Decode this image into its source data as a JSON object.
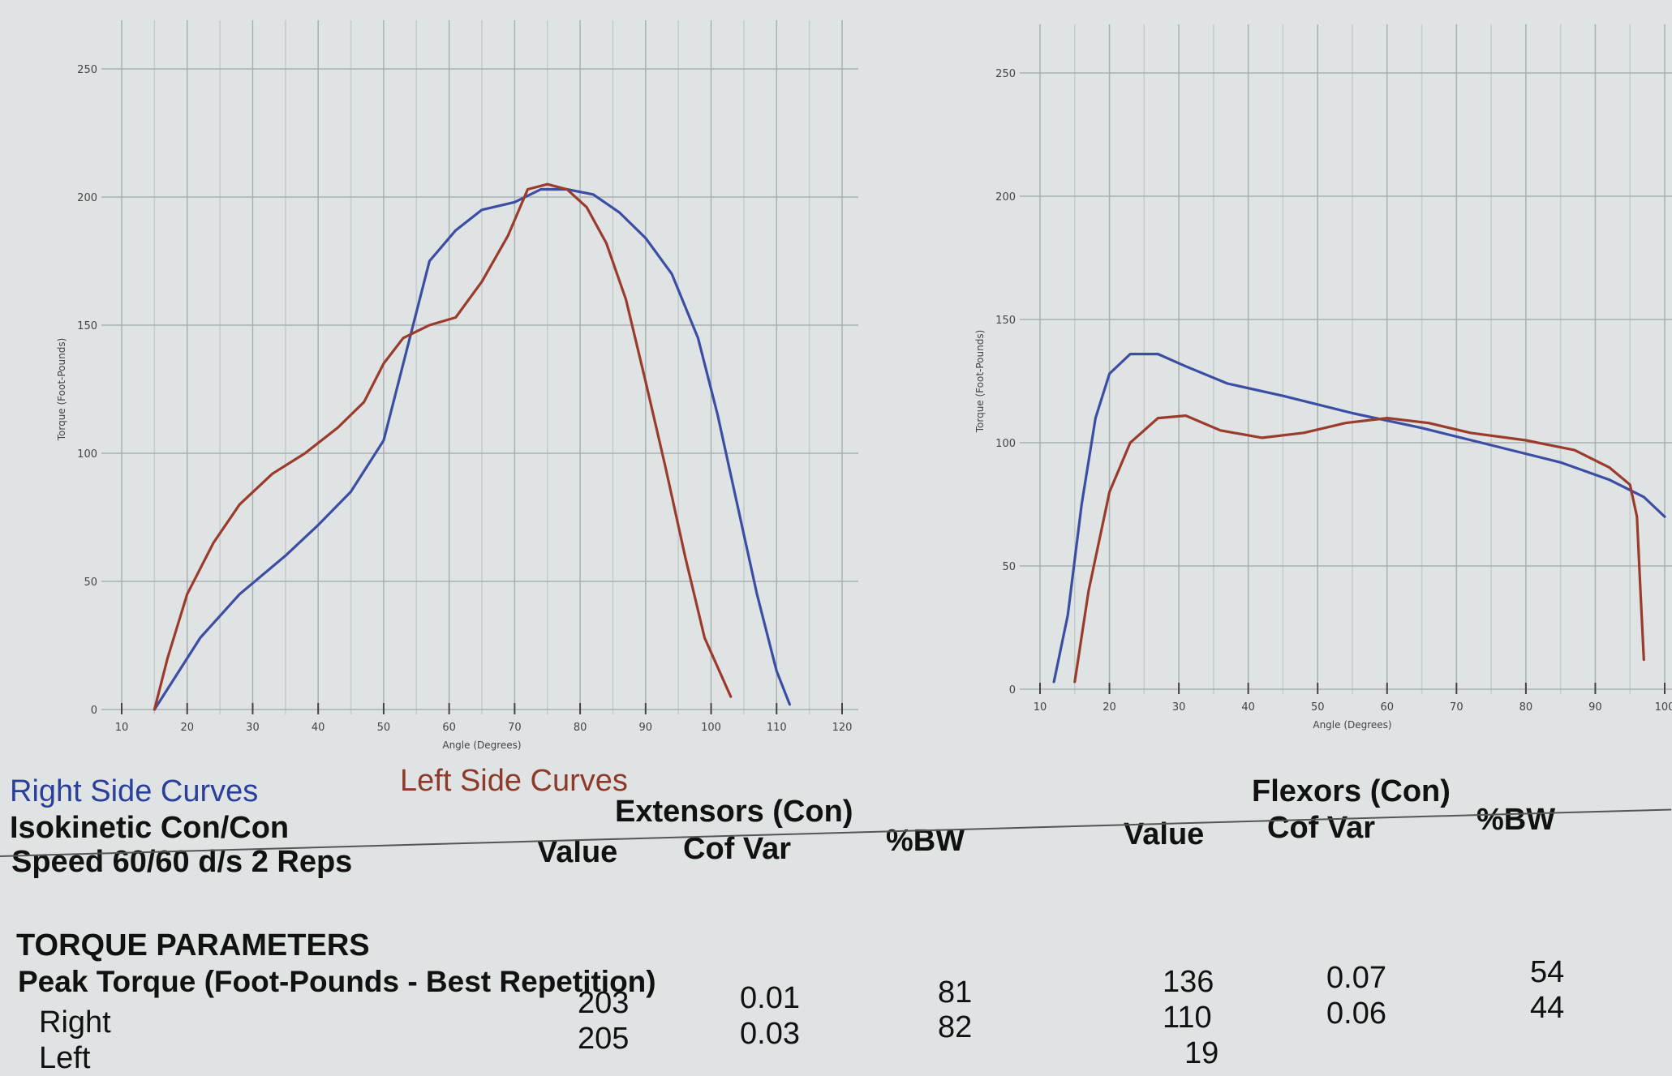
{
  "chart_data": [
    {
      "type": "line",
      "title": "",
      "xlabel": "Angle (Degrees)",
      "ylabel": "Torque (Foot-Pounds)",
      "xlim": [
        10,
        120
      ],
      "ylim": [
        0,
        250
      ],
      "x_ticks": [
        "10",
        "20",
        "30",
        "40",
        "50",
        "60",
        "70",
        "80",
        "90",
        "100",
        "110",
        "120"
      ],
      "y_ticks": [
        "250",
        "200",
        "150",
        "100",
        "50",
        "0"
      ],
      "series": [
        {
          "name": "Right Side Curves",
          "color": "#3b4ea3",
          "points": [
            [
              15,
              0
            ],
            [
              18,
              12
            ],
            [
              22,
              28
            ],
            [
              28,
              45
            ],
            [
              35,
              60
            ],
            [
              40,
              72
            ],
            [
              45,
              85
            ],
            [
              50,
              105
            ],
            [
              53,
              135
            ],
            [
              57,
              175
            ],
            [
              61,
              187
            ],
            [
              65,
              195
            ],
            [
              70,
              198
            ],
            [
              74,
              203
            ],
            [
              78,
              203
            ],
            [
              82,
              201
            ],
            [
              86,
              194
            ],
            [
              90,
              184
            ],
            [
              94,
              170
            ],
            [
              98,
              145
            ],
            [
              101,
              115
            ],
            [
              104,
              80
            ],
            [
              107,
              45
            ],
            [
              110,
              15
            ],
            [
              112,
              2
            ]
          ]
        },
        {
          "name": "Left Side Curves",
          "color": "#9a3b2c",
          "points": [
            [
              15,
              0
            ],
            [
              17,
              20
            ],
            [
              20,
              45
            ],
            [
              24,
              65
            ],
            [
              28,
              80
            ],
            [
              33,
              92
            ],
            [
              38,
              100
            ],
            [
              43,
              110
            ],
            [
              47,
              120
            ],
            [
              50,
              135
            ],
            [
              53,
              145
            ],
            [
              57,
              150
            ],
            [
              61,
              153
            ],
            [
              65,
              167
            ],
            [
              69,
              185
            ],
            [
              72,
              203
            ],
            [
              75,
              205
            ],
            [
              78,
              203
            ],
            [
              81,
              196
            ],
            [
              84,
              182
            ],
            [
              87,
              160
            ],
            [
              90,
              128
            ],
            [
              93,
              95
            ],
            [
              96,
              60
            ],
            [
              99,
              28
            ],
            [
              103,
              5
            ]
          ]
        }
      ]
    },
    {
      "type": "line",
      "title": "",
      "xlabel": "Angle (Degrees)",
      "ylabel": "Torque (Foot-Pounds)",
      "xlim": [
        10,
        100
      ],
      "ylim": [
        0,
        250
      ],
      "x_ticks": [
        "10",
        "20",
        "30",
        "40",
        "50",
        "60",
        "70",
        "80",
        "90",
        "100"
      ],
      "y_ticks": [
        "250",
        "200",
        "150",
        "100",
        "50",
        "0"
      ],
      "series": [
        {
          "name": "Right Side Curves",
          "color": "#3b4ea3",
          "points": [
            [
              12,
              3
            ],
            [
              14,
              30
            ],
            [
              16,
              75
            ],
            [
              18,
              110
            ],
            [
              20,
              128
            ],
            [
              23,
              136
            ],
            [
              27,
              136
            ],
            [
              31,
              131
            ],
            [
              37,
              124
            ],
            [
              45,
              119
            ],
            [
              55,
              112
            ],
            [
              65,
              106
            ],
            [
              75,
              99
            ],
            [
              85,
              92
            ],
            [
              92,
              85
            ],
            [
              97,
              78
            ],
            [
              100,
              70
            ]
          ]
        },
        {
          "name": "Left Side Curves",
          "color": "#9a3b2c",
          "points": [
            [
              15,
              3
            ],
            [
              17,
              40
            ],
            [
              20,
              80
            ],
            [
              23,
              100
            ],
            [
              27,
              110
            ],
            [
              31,
              111
            ],
            [
              36,
              105
            ],
            [
              42,
              102
            ],
            [
              48,
              104
            ],
            [
              54,
              108
            ],
            [
              60,
              110
            ],
            [
              66,
              108
            ],
            [
              72,
              104
            ],
            [
              80,
              101
            ],
            [
              87,
              97
            ],
            [
              92,
              90
            ],
            [
              95,
              83
            ],
            [
              96,
              70
            ],
            [
              96.5,
              40
            ],
            [
              97,
              12
            ]
          ]
        }
      ]
    }
  ],
  "legend": {
    "right": "Right Side Curves",
    "left": "Left Side Curves"
  },
  "info": {
    "mode": "Isokinetic Con/Con",
    "speed": "Speed 60/60 d/s 2 Reps"
  },
  "headers": {
    "extensors": "Extensors (Con)",
    "flexors": "Flexors (Con)",
    "value": "Value",
    "cofvar": "Cof Var",
    "bw": "%BW",
    "value2": "Value",
    "cofvar2": "Cof Var",
    "bw2": "%BW"
  },
  "section": {
    "title": "TORQUE PARAMETERS",
    "subtitle": "Peak Torque (Foot-Pounds - Best Repetition)",
    "row_right": "Right",
    "row_left": "Left"
  },
  "values": {
    "ext_right_value": "203",
    "ext_right_cof": "0.01",
    "ext_right_bw": "81",
    "ext_left_value": "205",
    "ext_left_cof": "0.03",
    "ext_left_bw": "82",
    "flex_right_value": "136",
    "flex_right_cof": "0.07",
    "flex_right_bw": "54",
    "flex_left_value": "110",
    "flex_left_cof": "0.06",
    "flex_left_bw": "44",
    "flex_deficit": "19"
  }
}
